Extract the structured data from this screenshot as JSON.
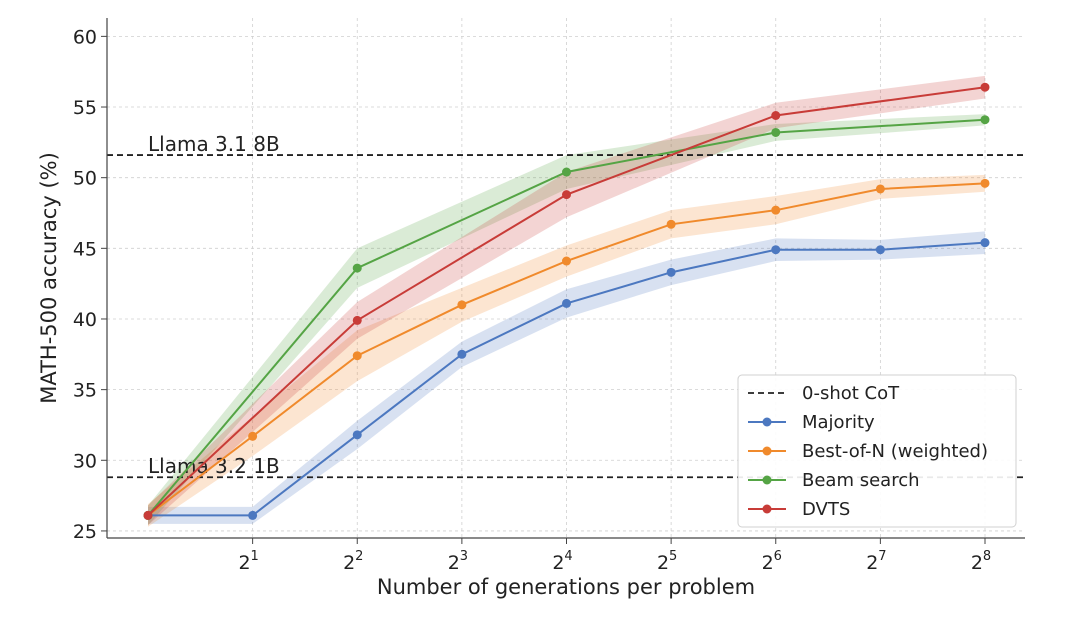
{
  "chart_data": {
    "type": "line",
    "xlabel": "Number of generations per problem",
    "ylabel": "MATH-500 accuracy (%)",
    "x": [
      1,
      2,
      4,
      8,
      16,
      32,
      64,
      128,
      256
    ],
    "x_scale": "log2",
    "x_tick_labels": [
      {
        "base": "2",
        "exp": "1"
      },
      {
        "base": "2",
        "exp": "2"
      },
      {
        "base": "2",
        "exp": "3"
      },
      {
        "base": "2",
        "exp": "4"
      },
      {
        "base": "2",
        "exp": "5"
      },
      {
        "base": "2",
        "exp": "6"
      },
      {
        "base": "2",
        "exp": "7"
      },
      {
        "base": "2",
        "exp": "8"
      }
    ],
    "y_ticks": [
      "25",
      "30",
      "35",
      "40",
      "45",
      "50",
      "55",
      "60"
    ],
    "ylim": [
      24.5,
      61.3
    ],
    "grid": true,
    "legend_position": "bottom-right",
    "reference_lines": [
      {
        "label": "Llama 3.1 8B",
        "y": 51.6
      },
      {
        "label": "Llama 3.2 1B",
        "y": 28.8
      }
    ],
    "reference_legend": "0-shot CoT",
    "series": [
      {
        "name": "Majority",
        "color": "#4c78c0",
        "values": [
          26.1,
          26.1,
          31.8,
          37.5,
          41.1,
          43.3,
          44.9,
          44.9,
          45.4
        ],
        "band": [
          [
            25.5,
            26.7
          ],
          [
            25.5,
            26.7
          ],
          [
            30.8,
            32.8
          ],
          [
            36.6,
            38.4
          ],
          [
            40.1,
            42.1
          ],
          [
            42.4,
            44.2
          ],
          [
            44.1,
            45.7
          ],
          [
            44.2,
            45.6
          ],
          [
            44.6,
            46.2
          ]
        ]
      },
      {
        "name": "Best-of-N (weighted)",
        "color": "#f08a2c",
        "values": [
          26.1,
          31.7,
          37.4,
          41.0,
          44.1,
          46.7,
          47.7,
          49.2,
          49.6
        ],
        "band": [
          [
            25.3,
            26.9
          ],
          [
            30.3,
            33.1
          ],
          [
            35.6,
            39.2
          ],
          [
            39.8,
            42.2
          ],
          [
            43.0,
            45.2
          ],
          [
            45.7,
            47.7
          ],
          [
            46.7,
            48.7
          ],
          [
            48.5,
            49.9
          ],
          [
            49.0,
            50.2
          ]
        ]
      },
      {
        "name": "Beam search",
        "color": "#55a445",
        "values": [
          26.1,
          null,
          43.6,
          null,
          50.4,
          null,
          53.2,
          null,
          54.1
        ],
        "band": [
          [
            25.4,
            26.8
          ],
          null,
          [
            42.2,
            45.0
          ],
          null,
          [
            49.2,
            51.6
          ],
          null,
          [
            52.6,
            53.8
          ],
          null,
          [
            53.7,
            54.5
          ]
        ]
      },
      {
        "name": "DVTS",
        "color": "#c83c38",
        "values": [
          26.1,
          null,
          39.9,
          null,
          48.8,
          null,
          54.4,
          null,
          56.4
        ],
        "band": [
          [
            25.4,
            26.8
          ],
          null,
          [
            38.6,
            41.2
          ],
          null,
          [
            47.2,
            50.4
          ],
          null,
          [
            53.5,
            55.3
          ],
          null,
          [
            55.6,
            57.2
          ]
        ]
      }
    ]
  }
}
